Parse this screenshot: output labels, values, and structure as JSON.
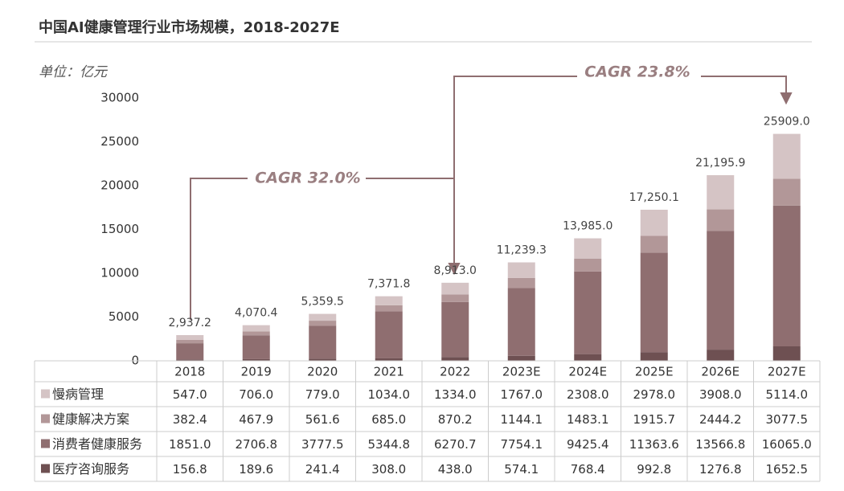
{
  "chart_data": {
    "type": "stacked-bar",
    "title": "中国AI健康管理行业市场规模，2018-2027E",
    "unit_label": "单位：亿元",
    "categories": [
      "2018",
      "2019",
      "2020",
      "2021",
      "2022",
      "2023E",
      "2024E",
      "2025E",
      "2026E",
      "2027E"
    ],
    "series": [
      {
        "name": "慢病管理",
        "color": "#d5c4c5",
        "values": [
          547.0,
          706.0,
          779.0,
          1034.0,
          1334.0,
          1767.0,
          2308.0,
          2978.0,
          3908.0,
          5114.0
        ],
        "value_labels": [
          "547.0",
          "706.0",
          "779.0",
          "1034.0",
          "1334.0",
          "1767.0",
          "2308.0",
          "2978.0",
          "3908.0",
          "5114.0"
        ]
      },
      {
        "name": "健康解决方案",
        "color": "#b29798",
        "values": [
          382.4,
          467.9,
          561.6,
          685.0,
          870.2,
          1144.1,
          1483.1,
          1915.7,
          2444.2,
          3077.5
        ],
        "value_labels": [
          "382.4",
          "467.9",
          "561.6",
          "685.0",
          "870.2",
          "1144.1",
          "1483.1",
          "1915.7",
          "2444.2",
          "3077.5"
        ]
      },
      {
        "name": "消费者健康服务",
        "color": "#8f6e70",
        "values": [
          1851.0,
          2706.8,
          3777.5,
          5344.8,
          6270.7,
          7754.1,
          9425.4,
          11363.6,
          13566.8,
          16065.0
        ],
        "value_labels": [
          "1851.0",
          "2706.8",
          "3777.5",
          "5344.8",
          "6270.7",
          "7754.1",
          "9425.4",
          "11363.6",
          "13566.8",
          "16065.0"
        ]
      },
      {
        "name": "医疗咨询服务",
        "color": "#6e5052",
        "values": [
          156.8,
          189.6,
          241.4,
          308.0,
          438.0,
          574.1,
          768.4,
          992.8,
          1276.8,
          1652.5
        ],
        "value_labels": [
          "156.8",
          "189.6",
          "241.4",
          "308.0",
          "438.0",
          "574.1",
          "768.4",
          "992.8",
          "1276.8",
          "1652.5"
        ]
      }
    ],
    "totals": {
      "values": [
        2937.2,
        4070.4,
        5359.5,
        7371.8,
        8913.0,
        11239.3,
        13985.0,
        17250.1,
        21195.9,
        25909.0
      ],
      "value_labels": [
        "2,937.2",
        "4,070.4",
        "5,359.5",
        "7,371.8",
        "8,913.0",
        "11,239.3",
        "13,985.0",
        "17,250.1",
        "21,195.9",
        "25909.0"
      ]
    },
    "annotations": [
      "CAGR 32.0%",
      "CAGR 23.8%"
    ],
    "ylim": [
      0,
      30000
    ],
    "yticks": [
      0,
      5000,
      10000,
      15000,
      20000,
      25000,
      30000
    ],
    "grid": false
  }
}
